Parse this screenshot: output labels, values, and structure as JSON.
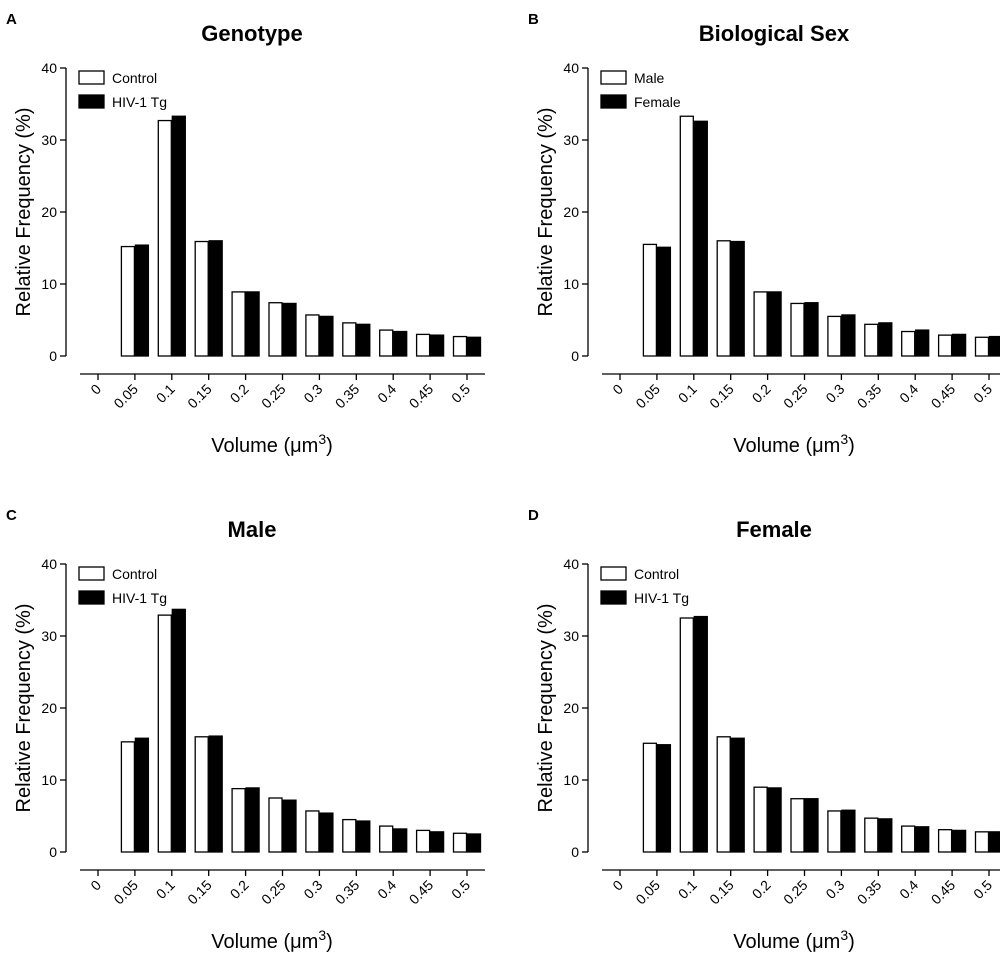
{
  "figure": {
    "panels": [
      {
        "letter": "A"
      },
      {
        "letter": "B"
      },
      {
        "letter": "C"
      },
      {
        "letter": "D"
      }
    ]
  },
  "chart_data": [
    {
      "type": "bar",
      "title": "Genotype",
      "xlabel": "Volume",
      "xlabel_unit": "(μm",
      "xlabel_exp": "3",
      "xlabel_close": ")",
      "ylabel": "Relative Frequency (%)",
      "ylim": [
        0,
        40
      ],
      "yticks": [
        0,
        10,
        20,
        30,
        40
      ],
      "categories": [
        "0",
        "0.05",
        "0.1",
        "0.15",
        "0.2",
        "0.25",
        "0.3",
        "0.35",
        "0.4",
        "0.45",
        "0.5"
      ],
      "legend_position": "top-left",
      "series": [
        {
          "name": "Control",
          "fill": "#ffffff",
          "values": [
            0,
            15.2,
            32.7,
            15.9,
            8.9,
            7.4,
            5.7,
            4.6,
            3.6,
            3.0,
            2.7
          ]
        },
        {
          "name": "HIV-1 Tg",
          "fill": "#000000",
          "values": [
            0,
            15.4,
            33.3,
            16.0,
            8.9,
            7.3,
            5.5,
            4.4,
            3.4,
            2.9,
            2.6
          ]
        }
      ]
    },
    {
      "type": "bar",
      "title": "Biological Sex",
      "xlabel": "Volume",
      "xlabel_unit": "(μm",
      "xlabel_exp": "3",
      "xlabel_close": ")",
      "ylabel": "Relative Frequency (%)",
      "ylim": [
        0,
        40
      ],
      "yticks": [
        0,
        10,
        20,
        30,
        40
      ],
      "categories": [
        "0",
        "0.05",
        "0.1",
        "0.15",
        "0.2",
        "0.25",
        "0.3",
        "0.35",
        "0.4",
        "0.45",
        "0.5"
      ],
      "legend_position": "top-left",
      "series": [
        {
          "name": "Male",
          "fill": "#ffffff",
          "values": [
            0,
            15.5,
            33.3,
            16.0,
            8.9,
            7.3,
            5.5,
            4.4,
            3.4,
            2.9,
            2.6
          ]
        },
        {
          "name": "Female",
          "fill": "#000000",
          "values": [
            0,
            15.1,
            32.6,
            15.9,
            8.9,
            7.4,
            5.7,
            4.6,
            3.6,
            3.0,
            2.7
          ]
        }
      ]
    },
    {
      "type": "bar",
      "title": "Male",
      "xlabel": "Volume",
      "xlabel_unit": "(μm",
      "xlabel_exp": "3",
      "xlabel_close": ")",
      "ylabel": "Relative Frequency (%)",
      "ylim": [
        0,
        40
      ],
      "yticks": [
        0,
        10,
        20,
        30,
        40
      ],
      "categories": [
        "0",
        "0.05",
        "0.1",
        "0.15",
        "0.2",
        "0.25",
        "0.3",
        "0.35",
        "0.4",
        "0.45",
        "0.5"
      ],
      "legend_position": "top-left",
      "series": [
        {
          "name": "Control",
          "fill": "#ffffff",
          "values": [
            0,
            15.3,
            32.9,
            16.0,
            8.8,
            7.5,
            5.7,
            4.5,
            3.6,
            3.0,
            2.6
          ]
        },
        {
          "name": "HIV-1 Tg",
          "fill": "#000000",
          "values": [
            0,
            15.8,
            33.7,
            16.1,
            8.9,
            7.2,
            5.4,
            4.3,
            3.2,
            2.8,
            2.5
          ]
        }
      ]
    },
    {
      "type": "bar",
      "title": "Female",
      "xlabel": "Volume",
      "xlabel_unit": "(μm",
      "xlabel_exp": "3",
      "xlabel_close": ")",
      "ylabel": "Relative Frequency (%)",
      "ylim": [
        0,
        40
      ],
      "yticks": [
        0,
        10,
        20,
        30,
        40
      ],
      "categories": [
        "0",
        "0.05",
        "0.1",
        "0.15",
        "0.2",
        "0.25",
        "0.3",
        "0.35",
        "0.4",
        "0.45",
        "0.5"
      ],
      "legend_position": "top-left",
      "series": [
        {
          "name": "Control",
          "fill": "#ffffff",
          "values": [
            0,
            15.1,
            32.5,
            16.0,
            9.0,
            7.4,
            5.7,
            4.7,
            3.6,
            3.1,
            2.8
          ]
        },
        {
          "name": "HIV-1 Tg",
          "fill": "#000000",
          "values": [
            0,
            14.9,
            32.7,
            15.8,
            8.9,
            7.4,
            5.8,
            4.6,
            3.5,
            3.0,
            2.8
          ]
        }
      ]
    }
  ]
}
